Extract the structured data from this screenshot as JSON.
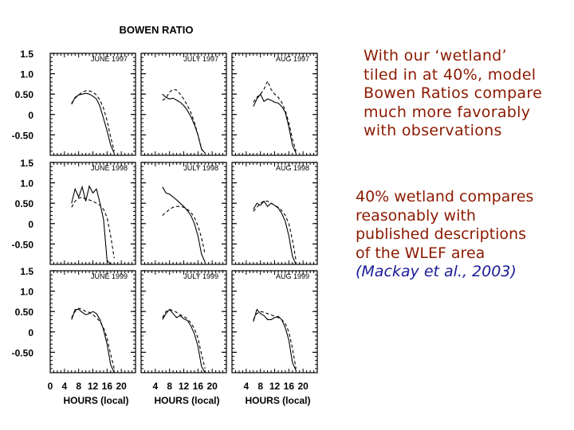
{
  "figure": {
    "title": "BOWEN RATIO",
    "ytick_labels": [
      "1.5",
      "1.0",
      "0.50",
      "0",
      "-0.50"
    ],
    "xtick_labels": [
      "0",
      "4",
      "8",
      "12",
      "16",
      "20"
    ],
    "xlabel": "HOURS (local)",
    "series_styles": [
      "solid",
      "dashed"
    ],
    "line_color": "#000000"
  },
  "notes": {
    "note1_lines": [
      "With our ‘wetland’",
      "tiled in at 40%, model",
      "Bowen Ratios compare",
      "much more favorably",
      "with observations"
    ],
    "note2_lines": [
      "40% wetland compares",
      "reasonably with",
      "published descriptions",
      "of the WLEF area"
    ],
    "citation": "(Mackay et al., 2003)",
    "text_color": "#8b1a00",
    "citation_color": "#1a1a99"
  },
  "chart_data": {
    "type": "line",
    "title": "BOWEN RATIO",
    "xlabel": "HOURS (local)",
    "ylabel": "",
    "xlim": [
      0,
      24
    ],
    "ylim": [
      -1.0,
      1.5
    ],
    "yticks": [
      1.5,
      1.0,
      0.5,
      0,
      -0.5
    ],
    "xticks": [
      0,
      4,
      8,
      12,
      16,
      20
    ],
    "grid": false,
    "panels": [
      {
        "label": "JUNE 1997",
        "row": 0,
        "col": 0,
        "series": [
          {
            "style": "solid",
            "x": [
              6,
              7,
              8,
              9,
              10,
              11,
              12,
              13,
              14,
              15,
              16,
              17,
              18
            ],
            "y": [
              0.25,
              0.42,
              0.48,
              0.5,
              0.52,
              0.5,
              0.45,
              0.38,
              0.2,
              -0.1,
              -0.4,
              -0.75,
              -0.95
            ]
          },
          {
            "style": "dashed",
            "x": [
              6,
              7,
              8,
              9,
              10,
              11,
              12,
              13,
              14,
              15,
              16,
              17,
              18
            ],
            "y": [
              0.28,
              0.4,
              0.48,
              0.55,
              0.58,
              0.58,
              0.55,
              0.48,
              0.35,
              0.15,
              -0.15,
              -0.55,
              -0.9
            ]
          }
        ]
      },
      {
        "label": "JULY 1997",
        "row": 0,
        "col": 1,
        "series": [
          {
            "style": "solid",
            "x": [
              6,
              7,
              8,
              9,
              10,
              11,
              12,
              13,
              14,
              15,
              16,
              17,
              18
            ],
            "y": [
              0.5,
              0.42,
              0.38,
              0.4,
              0.35,
              0.3,
              0.22,
              0.1,
              -0.05,
              -0.25,
              -0.5,
              -0.85,
              -0.95
            ]
          },
          {
            "style": "dashed",
            "x": [
              6,
              7,
              8,
              9,
              10,
              11,
              12,
              13,
              14,
              15,
              16,
              17,
              18
            ],
            "y": [
              0.35,
              0.4,
              0.55,
              0.62,
              0.6,
              0.5,
              0.38,
              0.22,
              0.05,
              -0.2,
              -0.5,
              -0.85,
              -0.95
            ]
          }
        ]
      },
      {
        "label": "AUG 1997",
        "row": 0,
        "col": 2,
        "series": [
          {
            "style": "solid",
            "x": [
              6,
              7,
              8,
              9,
              10,
              11,
              12,
              13,
              14,
              15,
              16,
              17,
              18
            ],
            "y": [
              0.2,
              0.38,
              0.5,
              0.32,
              0.38,
              0.35,
              0.3,
              0.28,
              0.2,
              0.05,
              -0.3,
              -0.75,
              -0.95
            ]
          },
          {
            "style": "dashed",
            "x": [
              6,
              7,
              8,
              9,
              10,
              11,
              12,
              13,
              14,
              15,
              16,
              17,
              18
            ],
            "y": [
              0.3,
              0.42,
              0.5,
              0.62,
              0.82,
              0.62,
              0.5,
              0.42,
              0.3,
              0.1,
              -0.2,
              -0.6,
              -0.9
            ]
          }
        ]
      },
      {
        "label": "JUNE 1998",
        "row": 1,
        "col": 0,
        "series": [
          {
            "style": "solid",
            "x": [
              6,
              7,
              8,
              9,
              10,
              11,
              12,
              13,
              14,
              15,
              16,
              17,
              18
            ],
            "y": [
              0.5,
              0.85,
              0.65,
              0.9,
              0.55,
              0.92,
              0.75,
              0.85,
              0.5,
              0.1,
              -0.9,
              -1.0,
              -1.0
            ]
          },
          {
            "style": "dashed",
            "x": [
              6,
              7,
              8,
              9,
              10,
              11,
              12,
              13,
              14,
              15,
              16,
              17,
              18
            ],
            "y": [
              0.4,
              0.55,
              0.62,
              0.65,
              0.6,
              0.58,
              0.55,
              0.5,
              0.45,
              0.35,
              0.15,
              -0.3,
              -0.85
            ]
          }
        ]
      },
      {
        "label": "JULY 1998",
        "row": 1,
        "col": 1,
        "series": [
          {
            "style": "solid",
            "x": [
              6,
              7,
              8,
              9,
              10,
              11,
              12,
              13,
              14,
              15,
              16,
              17,
              18
            ],
            "y": [
              0.9,
              0.75,
              0.72,
              0.65,
              0.58,
              0.5,
              0.42,
              0.32,
              0.2,
              0.0,
              -0.3,
              -0.75,
              -0.95
            ]
          },
          {
            "style": "dashed",
            "x": [
              6,
              7,
              8,
              9,
              10,
              11,
              12,
              13,
              14,
              15,
              16,
              17,
              18
            ],
            "y": [
              0.2,
              0.28,
              0.35,
              0.4,
              0.42,
              0.42,
              0.4,
              0.35,
              0.28,
              0.15,
              -0.05,
              -0.35,
              -0.75
            ]
          }
        ]
      },
      {
        "label": "AUG 1998",
        "row": 1,
        "col": 2,
        "series": [
          {
            "style": "solid",
            "x": [
              6,
              7,
              8,
              9,
              10,
              11,
              12,
              13,
              14,
              15,
              16,
              17,
              18
            ],
            "y": [
              0.35,
              0.5,
              0.45,
              0.55,
              0.42,
              0.5,
              0.45,
              0.38,
              0.25,
              0.05,
              -0.3,
              -0.8,
              -1.0
            ]
          },
          {
            "style": "dashed",
            "x": [
              6,
              7,
              8,
              9,
              10,
              11,
              12,
              13,
              14,
              15,
              16,
              17,
              18
            ],
            "y": [
              0.3,
              0.4,
              0.5,
              0.55,
              0.55,
              0.5,
              0.45,
              0.4,
              0.32,
              0.2,
              0.0,
              -0.4,
              -0.9
            ]
          }
        ]
      },
      {
        "label": "JUNE 1999",
        "row": 2,
        "col": 0,
        "series": [
          {
            "style": "solid",
            "x": [
              6,
              7,
              8,
              9,
              10,
              11,
              12,
              13,
              14,
              15,
              16,
              17,
              18
            ],
            "y": [
              0.3,
              0.55,
              0.55,
              0.48,
              0.42,
              0.45,
              0.5,
              0.45,
              0.3,
              0.05,
              -0.3,
              -0.8,
              -1.0
            ]
          },
          {
            "style": "dashed",
            "x": [
              6,
              7,
              8,
              9,
              10,
              11,
              12,
              13,
              14,
              15,
              16,
              17,
              18
            ],
            "y": [
              0.35,
              0.5,
              0.58,
              0.55,
              0.5,
              0.48,
              0.42,
              0.35,
              0.25,
              0.1,
              -0.15,
              -0.55,
              -0.9
            ]
          }
        ]
      },
      {
        "label": "JULY 1999",
        "row": 2,
        "col": 1,
        "series": [
          {
            "style": "solid",
            "x": [
              6,
              7,
              8,
              9,
              10,
              11,
              12,
              13,
              14,
              15,
              16,
              17,
              18
            ],
            "y": [
              0.3,
              0.45,
              0.55,
              0.45,
              0.35,
              0.4,
              0.32,
              0.28,
              0.15,
              -0.05,
              -0.35,
              -0.85,
              -1.0
            ]
          },
          {
            "style": "dashed",
            "x": [
              6,
              7,
              8,
              9,
              10,
              11,
              12,
              13,
              14,
              15,
              16,
              17,
              18
            ],
            "y": [
              0.35,
              0.5,
              0.55,
              0.52,
              0.48,
              0.42,
              0.38,
              0.32,
              0.22,
              0.08,
              -0.15,
              -0.55,
              -0.9
            ]
          }
        ]
      },
      {
        "label": "AUG 1999",
        "row": 2,
        "col": 2,
        "series": [
          {
            "style": "solid",
            "x": [
              6,
              7,
              8,
              9,
              10,
              11,
              12,
              13,
              14,
              15,
              16,
              17,
              18
            ],
            "y": [
              0.25,
              0.55,
              0.45,
              0.4,
              0.3,
              0.3,
              0.35,
              0.38,
              0.3,
              0.1,
              -0.2,
              -0.75,
              -0.95
            ]
          },
          {
            "style": "dashed",
            "x": [
              6,
              7,
              8,
              9,
              10,
              11,
              12,
              13,
              14,
              15,
              16,
              17,
              18
            ],
            "y": [
              0.3,
              0.45,
              0.5,
              0.48,
              0.45,
              0.42,
              0.38,
              0.35,
              0.3,
              0.2,
              0.0,
              -0.4,
              -0.9
            ]
          }
        ]
      }
    ]
  }
}
